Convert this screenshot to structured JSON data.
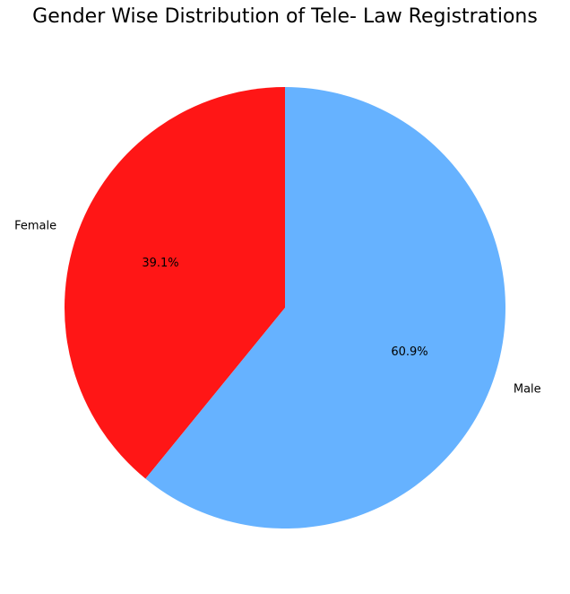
{
  "chart_data": {
    "type": "pie",
    "title": "Gender Wise Distribution of Tele- Law Registrations",
    "categories": [
      "Female",
      "Male"
    ],
    "values": [
      39.1,
      60.9
    ],
    "value_labels": [
      "39.1%",
      "60.9%"
    ],
    "colors": [
      "#ff1616",
      "#66b2ff"
    ],
    "start_angle_deg": 90,
    "direction": "counterclockwise",
    "legend": "none"
  }
}
